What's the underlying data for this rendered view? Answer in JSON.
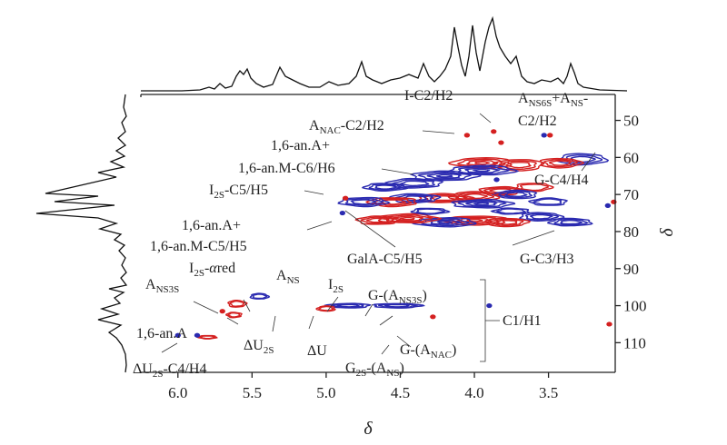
{
  "chart_data": {
    "type": "heatmap",
    "subtype": "2D HSQC NMR contour spectrum",
    "title": "",
    "xlabel": "δ",
    "ylabel": "δ",
    "x_range": [
      6.25,
      3.05
    ],
    "y_range": [
      43,
      118
    ],
    "x_ticks": [
      "6.0",
      "5.5",
      "5.0",
      "4.5",
      "4.0",
      "3.5"
    ],
    "x_tick_values": [
      6.0,
      5.5,
      5.0,
      4.5,
      4.0,
      3.5
    ],
    "y_ticks": [
      "50",
      "60",
      "70",
      "80",
      "90",
      "100",
      "110"
    ],
    "y_tick_values": [
      50,
      60,
      70,
      80,
      90,
      100,
      110
    ],
    "series_colors": [
      "#d42020",
      "#2a2ab0"
    ],
    "contours": [
      {
        "x": 3.27,
        "y": 60.5,
        "w": 0.16,
        "h": 3.0,
        "color": "#2a2ab0"
      },
      {
        "x": 3.42,
        "y": 61.5,
        "w": 0.14,
        "h": 2.5,
        "color": "#d42020"
      },
      {
        "x": 3.7,
        "y": 62.0,
        "w": 0.16,
        "h": 3.0,
        "color": "#d42020"
      },
      {
        "x": 3.95,
        "y": 61.5,
        "w": 0.2,
        "h": 2.8,
        "color": "#d42020"
      },
      {
        "x": 3.95,
        "y": 63.5,
        "w": 0.22,
        "h": 2.5,
        "color": "#2a2ab0"
      },
      {
        "x": 4.2,
        "y": 65.0,
        "w": 0.22,
        "h": 2.5,
        "color": "#2a2ab0"
      },
      {
        "x": 4.4,
        "y": 67.0,
        "w": 0.18,
        "h": 2.5,
        "color": "#2a2ab0"
      },
      {
        "x": 4.6,
        "y": 68.0,
        "w": 0.14,
        "h": 2.0,
        "color": "#2a2ab0"
      },
      {
        "x": 3.6,
        "y": 68.0,
        "w": 0.12,
        "h": 2.2,
        "color": "#d42020"
      },
      {
        "x": 3.82,
        "y": 69.0,
        "w": 0.14,
        "h": 2.2,
        "color": "#d42020"
      },
      {
        "x": 3.72,
        "y": 70.0,
        "w": 0.14,
        "h": 2.2,
        "color": "#2a2ab0"
      },
      {
        "x": 4.0,
        "y": 70.5,
        "w": 0.16,
        "h": 2.4,
        "color": "#d42020"
      },
      {
        "x": 4.2,
        "y": 71.0,
        "w": 0.18,
        "h": 2.4,
        "color": "#d42020"
      },
      {
        "x": 4.4,
        "y": 71.0,
        "w": 0.16,
        "h": 2.4,
        "color": "#2a2ab0"
      },
      {
        "x": 4.55,
        "y": 72.0,
        "w": 0.16,
        "h": 2.4,
        "color": "#d42020"
      },
      {
        "x": 4.75,
        "y": 72.0,
        "w": 0.16,
        "h": 2.4,
        "color": "#2a2ab0"
      },
      {
        "x": 3.95,
        "y": 72.5,
        "w": 0.2,
        "h": 2.2,
        "color": "#2a2ab0"
      },
      {
        "x": 3.5,
        "y": 72.0,
        "w": 0.12,
        "h": 2.0,
        "color": "#2a2ab0"
      },
      {
        "x": 3.35,
        "y": 77.5,
        "w": 0.14,
        "h": 2.0,
        "color": "#2a2ab0"
      },
      {
        "x": 3.55,
        "y": 76.0,
        "w": 0.14,
        "h": 2.2,
        "color": "#2a2ab0"
      },
      {
        "x": 3.78,
        "y": 77.5,
        "w": 0.14,
        "h": 2.2,
        "color": "#d42020"
      },
      {
        "x": 4.0,
        "y": 77.0,
        "w": 0.22,
        "h": 2.4,
        "color": "#d42020"
      },
      {
        "x": 4.2,
        "y": 77.5,
        "w": 0.2,
        "h": 2.4,
        "color": "#2a2ab0"
      },
      {
        "x": 4.45,
        "y": 76.5,
        "w": 0.2,
        "h": 2.4,
        "color": "#d42020"
      },
      {
        "x": 4.65,
        "y": 77.0,
        "w": 0.14,
        "h": 2.2,
        "color": "#d42020"
      },
      {
        "x": 3.75,
        "y": 74.5,
        "w": 0.12,
        "h": 1.6,
        "color": "#2a2ab0"
      },
      {
        "x": 4.3,
        "y": 74.5,
        "w": 0.12,
        "h": 1.6,
        "color": "#2a2ab0"
      },
      {
        "x": 4.52,
        "y": 100.0,
        "w": 0.16,
        "h": 1.2,
        "color": "#2a2ab0"
      },
      {
        "x": 4.85,
        "y": 100.0,
        "w": 0.14,
        "h": 1.2,
        "color": "#2a2ab0"
      },
      {
        "x": 5.0,
        "y": 100.8,
        "w": 0.06,
        "h": 1.4,
        "color": "#d42020"
      },
      {
        "x": 5.45,
        "y": 97.5,
        "w": 0.06,
        "h": 1.5,
        "color": "#2a2ab0"
      },
      {
        "x": 5.6,
        "y": 99.5,
        "w": 0.06,
        "h": 1.8,
        "color": "#d42020"
      },
      {
        "x": 5.62,
        "y": 102.5,
        "w": 0.05,
        "h": 1.4,
        "color": "#d42020"
      },
      {
        "x": 5.8,
        "y": 108.5,
        "w": 0.06,
        "h": 0.9,
        "color": "#d42020"
      }
    ],
    "dots": [
      {
        "x": 3.87,
        "y": 53.0,
        "color": "#d42020"
      },
      {
        "x": 4.05,
        "y": 54.0,
        "color": "#d42020"
      },
      {
        "x": 3.82,
        "y": 56.0,
        "color": "#d42020"
      },
      {
        "x": 3.53,
        "y": 54.0,
        "color": "#2a2ab0"
      },
      {
        "x": 3.49,
        "y": 54.0,
        "color": "#d42020"
      },
      {
        "x": 3.85,
        "y": 66.0,
        "color": "#2a2ab0"
      },
      {
        "x": 4.87,
        "y": 71.0,
        "color": "#d42020"
      },
      {
        "x": 4.89,
        "y": 75.0,
        "color": "#2a2ab0"
      },
      {
        "x": 3.1,
        "y": 73.0,
        "color": "#2a2ab0"
      },
      {
        "x": 3.06,
        "y": 72.0,
        "color": "#d42020"
      },
      {
        "x": 3.9,
        "y": 100.0,
        "color": "#2a2ab0"
      },
      {
        "x": 4.28,
        "y": 103.0,
        "color": "#d42020"
      },
      {
        "x": 5.7,
        "y": 101.5,
        "color": "#d42020"
      },
      {
        "x": 5.87,
        "y": 108.0,
        "color": "#2a2ab0"
      },
      {
        "x": 6.0,
        "y": 108.0,
        "color": "#2a2ab0"
      },
      {
        "x": 3.09,
        "y": 105.0,
        "color": "#d42020"
      }
    ],
    "annotations": [
      {
        "id": "ann-i-c2-h2",
        "segments": [
          {
            "text": "I-C2/H2"
          }
        ]
      },
      {
        "id": "ann-anac-c2-h2",
        "segments": [
          {
            "text": "A"
          },
          {
            "text": "NAC",
            "sub": true
          },
          {
            "text": "-C2/H2"
          }
        ]
      },
      {
        "id": "ann-ans6s-ans-1",
        "segments": [
          {
            "text": "A"
          },
          {
            "text": "NS6S",
            "sub": true
          },
          {
            "text": "+A"
          },
          {
            "text": "NS",
            "sub": true
          },
          {
            "text": "-"
          }
        ]
      },
      {
        "id": "ann-ans6s-ans-2",
        "segments": [
          {
            "text": "C2/H2"
          }
        ]
      },
      {
        "id": "ann-16an-a-plus-1",
        "segments": [
          {
            "text": "1,6-an.A+"
          }
        ]
      },
      {
        "id": "ann-16an-m-c6-h6",
        "segments": [
          {
            "text": "1,6-an.M-C6/H6"
          }
        ]
      },
      {
        "id": "ann-g-c4-h4",
        "segments": [
          {
            "text": "G-C4/H4"
          }
        ]
      },
      {
        "id": "ann-i2s-c5-h5",
        "segments": [
          {
            "text": "I"
          },
          {
            "text": "2S",
            "sub": true
          },
          {
            "text": "-C5/H5"
          }
        ]
      },
      {
        "id": "ann-16an-a-plus-2",
        "segments": [
          {
            "text": "1,6-an.A+"
          }
        ]
      },
      {
        "id": "ann-16an-m-c5-h5",
        "segments": [
          {
            "text": "1,6-an.M-C5/H5"
          }
        ]
      },
      {
        "id": "ann-gala-c5-h5",
        "segments": [
          {
            "text": "GalA-C5/H5"
          }
        ]
      },
      {
        "id": "ann-g-c3-h3",
        "segments": [
          {
            "text": "G-C3/H3"
          }
        ]
      },
      {
        "id": "ann-i2s-ared",
        "segments": [
          {
            "text": "I"
          },
          {
            "text": "2S",
            "sub": true
          },
          {
            "text": "-"
          },
          {
            "text": "α",
            "italic": true
          },
          {
            "text": "red"
          }
        ]
      },
      {
        "id": "ann-ans",
        "segments": [
          {
            "text": "A"
          },
          {
            "text": "NS",
            "sub": true
          }
        ]
      },
      {
        "id": "ann-ans3s",
        "segments": [
          {
            "text": "A"
          },
          {
            "text": "NS3S",
            "sub": true
          }
        ]
      },
      {
        "id": "ann-i2s",
        "segments": [
          {
            "text": "I"
          },
          {
            "text": "2S",
            "sub": true
          }
        ]
      },
      {
        "id": "ann-g-ans3s",
        "segments": [
          {
            "text": "G-(A"
          },
          {
            "text": "NS3S",
            "sub": true
          },
          {
            "text": ")"
          }
        ]
      },
      {
        "id": "ann-c1-h1",
        "segments": [
          {
            "text": "C1/H1"
          }
        ]
      },
      {
        "id": "ann-16an-a",
        "segments": [
          {
            "text": "1,6-an.A"
          }
        ]
      },
      {
        "id": "ann-du2s",
        "segments": [
          {
            "text": "ΔU"
          },
          {
            "text": "2S",
            "sub": true
          }
        ]
      },
      {
        "id": "ann-du",
        "segments": [
          {
            "text": "ΔU"
          }
        ]
      },
      {
        "id": "ann-g-anac",
        "segments": [
          {
            "text": "G-(A"
          },
          {
            "text": "NAC",
            "sub": true
          },
          {
            "text": ")"
          }
        ]
      },
      {
        "id": "ann-g2s-ans",
        "segments": [
          {
            "text": "G"
          },
          {
            "text": "2S",
            "sub": true
          },
          {
            "text": "-(A"
          },
          {
            "text": "NS",
            "sub": true
          },
          {
            "text": ")"
          }
        ]
      },
      {
        "id": "ann-du2s-c4-h4",
        "segments": [
          {
            "text": "ΔU"
          },
          {
            "text": "2S",
            "sub": true
          },
          {
            "text": "-C4/H4"
          }
        ]
      }
    ]
  }
}
